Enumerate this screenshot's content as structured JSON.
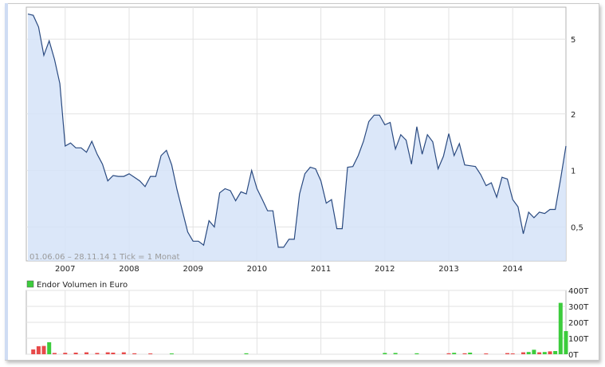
{
  "chart_data": [
    {
      "type": "area",
      "scale": "log",
      "line_color": "#2a4a80",
      "fill_color": "#d5e3f8",
      "grid": true,
      "ylim": [
        0.33,
        7.4
      ],
      "y_ticks": [
        {
          "value": 5,
          "label": "5"
        },
        {
          "value": 2,
          "label": "2"
        },
        {
          "value": 1,
          "label": "1"
        },
        {
          "value": 0.5,
          "label": "0,5"
        }
      ],
      "x_ticks": [
        {
          "year": 2007,
          "label": "2007"
        },
        {
          "year": 2008,
          "label": "2008"
        },
        {
          "year": 2009,
          "label": "2009"
        },
        {
          "year": 2010,
          "label": "2010"
        },
        {
          "year": 2011,
          "label": "2011"
        },
        {
          "year": 2012,
          "label": "2012"
        },
        {
          "year": 2013,
          "label": "2013"
        },
        {
          "year": 2014,
          "label": "2014"
        }
      ],
      "range_note": "01.06.06 – 28.11.14   1 Tick = 1 Monat",
      "series": [
        {
          "x": [
            "2006-06",
            "2006-07",
            "2006-08",
            "2006-09",
            "2006-10",
            "2006-11",
            "2006-12",
            "2007-01",
            "2007-02",
            "2007-03",
            "2007-04",
            "2007-05",
            "2007-06",
            "2007-07",
            "2007-08",
            "2007-09",
            "2007-10",
            "2007-11",
            "2007-12",
            "2008-01",
            "2008-02",
            "2008-03",
            "2008-04",
            "2008-05",
            "2008-06",
            "2008-07",
            "2008-08",
            "2008-09",
            "2008-10",
            "2008-11",
            "2008-12",
            "2009-01",
            "2009-02",
            "2009-03",
            "2009-04",
            "2009-05",
            "2009-06",
            "2009-07",
            "2009-08",
            "2009-09",
            "2009-10",
            "2009-11",
            "2009-12",
            "2010-01",
            "2010-02",
            "2010-03",
            "2010-04",
            "2010-05",
            "2010-06",
            "2010-07",
            "2010-08",
            "2010-09",
            "2010-10",
            "2010-11",
            "2010-12",
            "2011-01",
            "2011-02",
            "2011-03",
            "2011-04",
            "2011-05",
            "2011-06",
            "2011-07",
            "2011-08",
            "2011-09",
            "2011-10",
            "2011-11",
            "2011-12",
            "2012-01",
            "2012-02",
            "2012-03",
            "2012-04",
            "2012-05",
            "2012-06",
            "2012-07",
            "2012-08",
            "2012-09",
            "2012-10",
            "2012-11",
            "2012-12",
            "2013-01",
            "2013-02",
            "2013-03",
            "2013-04",
            "2013-05",
            "2013-06",
            "2013-07",
            "2013-08",
            "2013-09",
            "2013-10",
            "2013-11",
            "2013-12",
            "2014-01",
            "2014-02",
            "2014-03",
            "2014-04",
            "2014-05",
            "2014-06",
            "2014-07",
            "2014-08",
            "2014-09",
            "2014-10",
            "2014-11"
          ],
          "values": [
            6.8,
            6.7,
            5.8,
            4.1,
            4.9,
            3.9,
            2.9,
            1.35,
            1.4,
            1.32,
            1.32,
            1.25,
            1.43,
            1.22,
            1.08,
            0.88,
            0.94,
            0.93,
            0.93,
            0.96,
            0.92,
            0.88,
            0.82,
            0.93,
            0.93,
            1.2,
            1.28,
            1.07,
            0.79,
            0.61,
            0.47,
            0.42,
            0.42,
            0.4,
            0.54,
            0.5,
            0.76,
            0.8,
            0.78,
            0.69,
            0.77,
            0.75,
            1.0,
            0.8,
            0.7,
            0.61,
            0.61,
            0.39,
            0.39,
            0.43,
            0.43,
            0.75,
            0.96,
            1.04,
            1.02,
            0.88,
            0.67,
            0.7,
            0.49,
            0.49,
            1.04,
            1.05,
            1.2,
            1.43,
            1.82,
            1.97,
            1.97,
            1.75,
            1.8,
            1.3,
            1.55,
            1.45,
            1.08,
            1.71,
            1.22,
            1.55,
            1.42,
            1.02,
            1.19,
            1.57,
            1.2,
            1.39,
            1.07,
            1.06,
            1.05,
            0.95,
            0.83,
            0.86,
            0.72,
            0.92,
            0.9,
            0.7,
            0.64,
            0.46,
            0.6,
            0.56,
            0.6,
            0.59,
            0.62,
            0.62,
            0.9,
            1.35
          ]
        }
      ]
    },
    {
      "type": "bar",
      "legend": {
        "label": "Endor Volumen in Euro",
        "color": "#3ccc3c",
        "position": "top-left"
      },
      "up_color": "#3ccc3c",
      "down_color": "#e74a4a",
      "grid": true,
      "ylim": [
        0,
        400
      ],
      "unit": "T",
      "y_ticks": [
        {
          "value": 400,
          "label": "400T"
        },
        {
          "value": 300,
          "label": "300T"
        },
        {
          "value": 200,
          "label": "200T"
        },
        {
          "value": 100,
          "label": "100T"
        },
        {
          "value": 0,
          "label": "0T"
        }
      ],
      "bars": [
        {
          "x": "2006-07",
          "value": 30,
          "dir": "down"
        },
        {
          "x": "2006-08",
          "value": 50,
          "dir": "down"
        },
        {
          "x": "2006-09",
          "value": 52,
          "dir": "down"
        },
        {
          "x": "2006-10",
          "value": 75,
          "dir": "up"
        },
        {
          "x": "2006-11",
          "value": 8,
          "dir": "down"
        },
        {
          "x": "2007-01",
          "value": 9,
          "dir": "down"
        },
        {
          "x": "2007-03",
          "value": 10,
          "dir": "down"
        },
        {
          "x": "2007-05",
          "value": 12,
          "dir": "down"
        },
        {
          "x": "2007-07",
          "value": 8,
          "dir": "down"
        },
        {
          "x": "2007-09",
          "value": 12,
          "dir": "down"
        },
        {
          "x": "2007-10",
          "value": 10,
          "dir": "down"
        },
        {
          "x": "2007-12",
          "value": 12,
          "dir": "down"
        },
        {
          "x": "2008-02",
          "value": 6,
          "dir": "down"
        },
        {
          "x": "2008-05",
          "value": 5,
          "dir": "down"
        },
        {
          "x": "2008-09",
          "value": 5,
          "dir": "up"
        },
        {
          "x": "2009-11",
          "value": 6,
          "dir": "up"
        },
        {
          "x": "2012-01",
          "value": 8,
          "dir": "up"
        },
        {
          "x": "2012-03",
          "value": 8,
          "dir": "up"
        },
        {
          "x": "2012-07",
          "value": 6,
          "dir": "up"
        },
        {
          "x": "2013-01",
          "value": 6,
          "dir": "down"
        },
        {
          "x": "2013-02",
          "value": 9,
          "dir": "up"
        },
        {
          "x": "2013-04",
          "value": 6,
          "dir": "down"
        },
        {
          "x": "2013-05",
          "value": 10,
          "dir": "up"
        },
        {
          "x": "2013-08",
          "value": 5,
          "dir": "down"
        },
        {
          "x": "2013-12",
          "value": 7,
          "dir": "down"
        },
        {
          "x": "2014-01",
          "value": 5,
          "dir": "down"
        },
        {
          "x": "2014-03",
          "value": 12,
          "dir": "down"
        },
        {
          "x": "2014-04",
          "value": 14,
          "dir": "up"
        },
        {
          "x": "2014-05",
          "value": 28,
          "dir": "up"
        },
        {
          "x": "2014-06",
          "value": 12,
          "dir": "down"
        },
        {
          "x": "2014-07",
          "value": 14,
          "dir": "up"
        },
        {
          "x": "2014-08",
          "value": 18,
          "dir": "down"
        },
        {
          "x": "2014-09",
          "value": 20,
          "dir": "up"
        },
        {
          "x": "2014-10",
          "value": 322,
          "dir": "up"
        },
        {
          "x": "2014-11",
          "value": 145,
          "dir": "up"
        }
      ]
    }
  ]
}
